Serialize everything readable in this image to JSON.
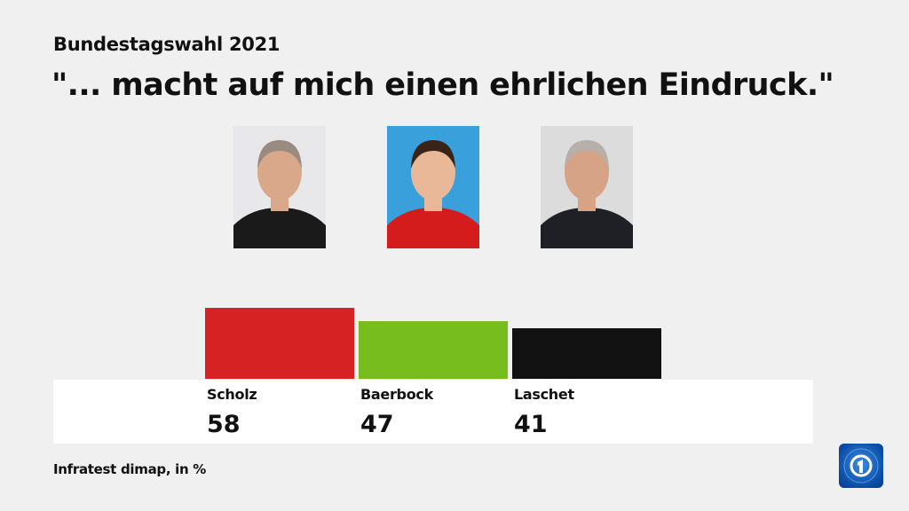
{
  "chart_data": {
    "type": "bar",
    "subtitle": "Bundestagswahl 2021",
    "title": "\"... macht auf mich einen ehrlichen Eindruck.\"",
    "categories": [
      "Scholz",
      "Baerbock",
      "Laschet"
    ],
    "values": [
      58,
      47,
      41
    ],
    "colors": [
      "#d62222",
      "#78bd1e",
      "#121212"
    ],
    "source": "Infratest dimap, in %",
    "unit": "%"
  },
  "photos": [
    {
      "person": "Scholz",
      "bg": "#e8e8ea",
      "clothes": "#1a1a1a",
      "skin": "#d9a88a",
      "hair": "#9a8b80"
    },
    {
      "person": "Baerbock",
      "bg": "#3aa0dc",
      "clothes": "#d41c1c",
      "skin": "#e8b898",
      "hair": "#3a2418"
    },
    {
      "person": "Laschet",
      "bg": "#dcdcdc",
      "clothes": "#1e2026",
      "skin": "#d6a386",
      "hair": "#b8b0a8"
    }
  ],
  "logo": {
    "name": "tagesschau-ard-logo",
    "color": "#0a4ea8"
  }
}
